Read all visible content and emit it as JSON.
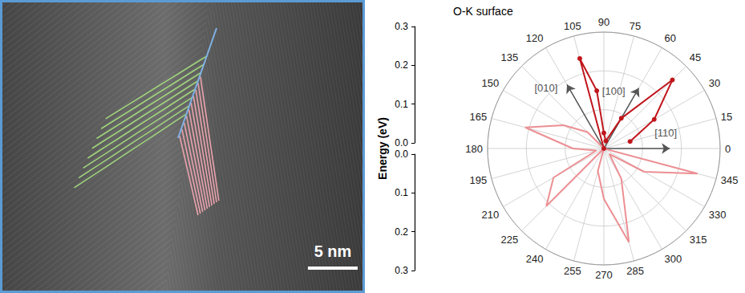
{
  "chart_data": {
    "type": "polar_line",
    "title": "O-K surface",
    "ylabel": "Energy (eV)",
    "xlim": [
      0,
      360
    ],
    "xticks": [
      0,
      15,
      30,
      45,
      60,
      75,
      90,
      105,
      120,
      135,
      150,
      165,
      180,
      195,
      210,
      225,
      240,
      255,
      270,
      285,
      300,
      315,
      330,
      345
    ],
    "ylim": [
      0,
      0.3
    ],
    "yticks": [
      {
        "value": 0,
        "label": "0.0"
      },
      0.1,
      0.2,
      0.3
    ],
    "grid": true,
    "series": [
      {
        "color": "#c0161c",
        "marker": "circle",
        "x": [
          15,
          30,
          45,
          60,
          75,
          90,
          97,
          105,
          120
        ],
        "values": [
          0.07,
          0.15,
          0.25,
          0.09,
          0.02,
          0.04,
          0.15,
          0.24,
          0
        ]
      },
      {
        "color": "#ec8f93",
        "marker": "none",
        "x": [
          120,
          135,
          150,
          165,
          180,
          195,
          210,
          225,
          240,
          255,
          270,
          285,
          300,
          315,
          330,
          345,
          360
        ],
        "values": [
          0,
          0.06,
          0.12,
          0.21,
          0.08,
          0.02,
          0.15,
          0.21,
          0,
          0.06,
          0.13,
          0.25,
          0.09,
          0.02,
          0.12,
          0.25,
          0
        ]
      }
    ],
    "annotations": [
      {
        "text": "[010]",
        "angle": 120,
        "value": 0.19
      },
      {
        "text": "[100]",
        "angle": 60,
        "value": 0.18
      },
      {
        "text": "[110]",
        "angle": 0,
        "value": 0.17
      }
    ]
  },
  "image": {
    "scale_bar": "5 nm"
  }
}
